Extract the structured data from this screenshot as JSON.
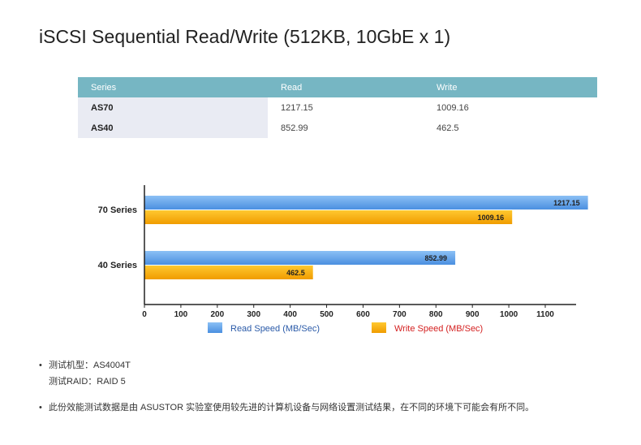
{
  "title": "iSCSI Sequential Read/Write (512KB, 10GbE x 1)",
  "table": {
    "headers": [
      "Series",
      "Read",
      "Write"
    ],
    "rows": [
      {
        "series": "AS70",
        "read": "1217.15",
        "write": "1009.16"
      },
      {
        "series": "AS40",
        "read": "852.99",
        "write": "462.5"
      }
    ]
  },
  "chart_data": {
    "type": "bar",
    "orientation": "horizontal",
    "categories": [
      "70 Series",
      "40 Series"
    ],
    "series": [
      {
        "name": "Read Speed (MB/Sec)",
        "values": [
          1217.15,
          852.99
        ],
        "labels": [
          "1217.15",
          "852.99"
        ],
        "color": "#5a9ee8"
      },
      {
        "name": "Write Speed (MB/Sec)",
        "values": [
          1009.16,
          462.5
        ],
        "labels": [
          "1009.16",
          "462.5"
        ],
        "color": "#f7a800"
      }
    ],
    "xlim": [
      0,
      1200
    ],
    "xticks": [
      "0",
      "100",
      "200",
      "300",
      "400",
      "500",
      "600",
      "700",
      "800",
      "900",
      "1000",
      "1100"
    ],
    "grid": false,
    "legend": "bottom",
    "legend_text_colors": [
      "#2a5aa8",
      "#d42020"
    ]
  },
  "notes": [
    [
      "测试机型：AS4004T",
      "测试RAID：RAID 5"
    ],
    [
      "此份效能测试数据是由 ASUSTOR 实验室使用较先进的计算机设备与网络设置测试结果，在不同的环境下可能会有所不同。"
    ]
  ]
}
